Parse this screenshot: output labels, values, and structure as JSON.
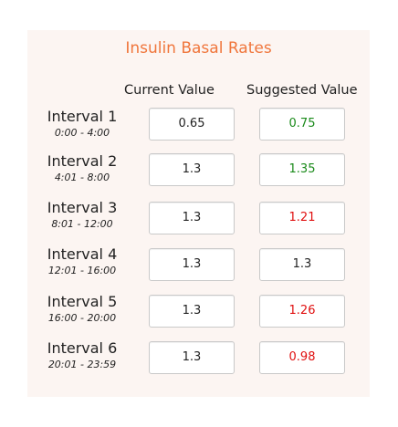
{
  "title": "Insulin Basal Rates",
  "headers": {
    "current": "Current Value",
    "suggested": "Suggested Value"
  },
  "colors": {
    "title": "#f0763c",
    "increase": "#1a8a1a",
    "decrease": "#e01010",
    "unchanged": "#222222",
    "panel_background": "#fcf5f2"
  },
  "intervals": [
    {
      "name": "Interval 1",
      "range": "0:00 - 4:00",
      "current": "0.65",
      "suggested": "0.75",
      "trend": "increase"
    },
    {
      "name": "Interval 2",
      "range": "4:01 - 8:00",
      "current": "1.3",
      "suggested": "1.35",
      "trend": "increase"
    },
    {
      "name": "Interval 3",
      "range": "8:01 - 12:00",
      "current": "1.3",
      "suggested": "1.21",
      "trend": "decrease"
    },
    {
      "name": "Interval 4",
      "range": "12:01 - 16:00",
      "current": "1.3",
      "suggested": "1.3",
      "trend": "unchanged"
    },
    {
      "name": "Interval 5",
      "range": "16:00 - 20:00",
      "current": "1.3",
      "suggested": "1.26",
      "trend": "decrease"
    },
    {
      "name": "Interval 6",
      "range": "20:01 - 23:59",
      "current": "1.3",
      "suggested": "0.98",
      "trend": "decrease"
    }
  ]
}
